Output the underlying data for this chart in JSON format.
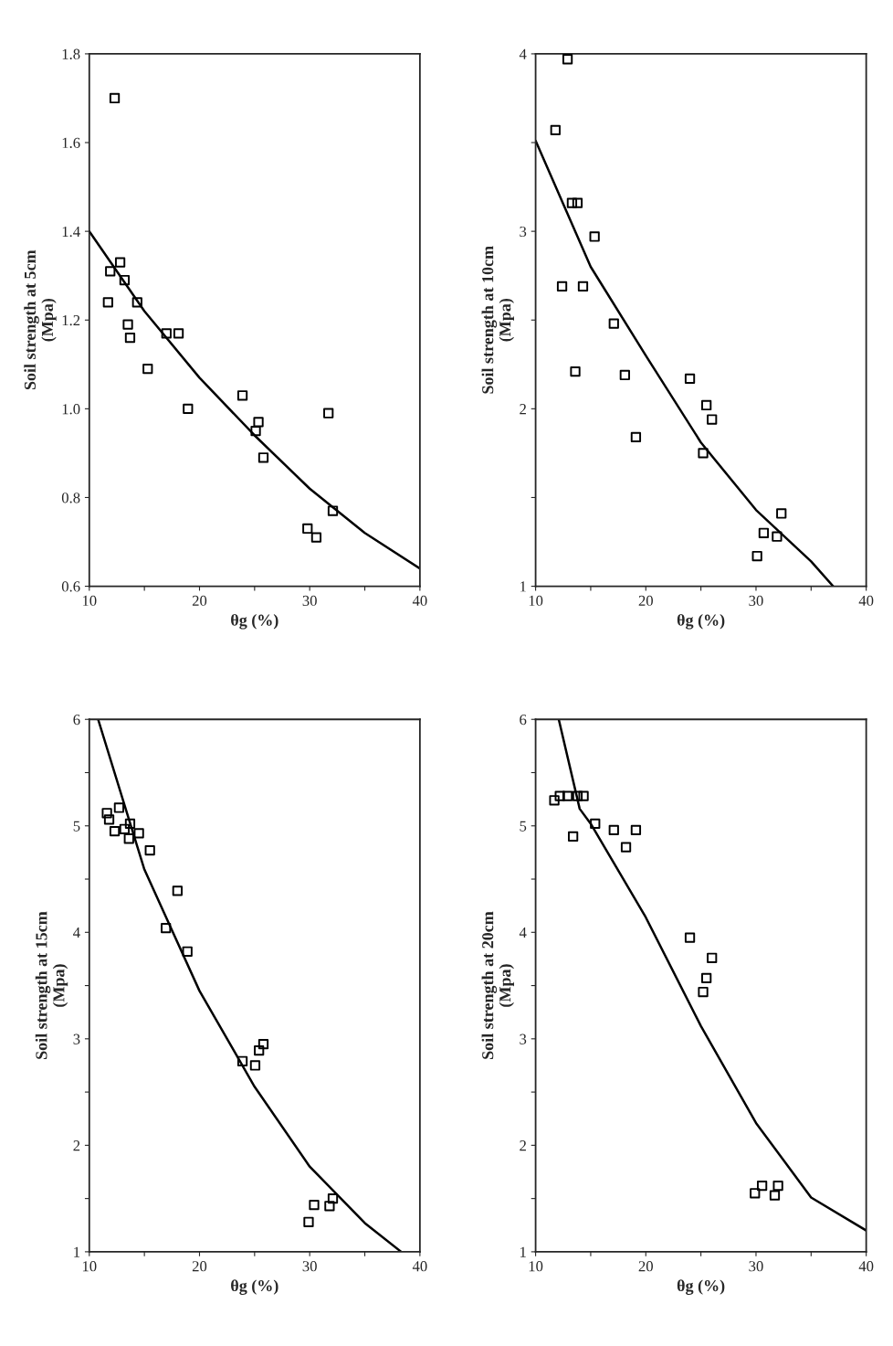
{
  "chart_data": [
    {
      "type": "scatter",
      "xlabel": "θg (%)",
      "ylabel": "Soil strength at 5cm\n(Mpa)",
      "xlim": [
        10,
        40
      ],
      "ylim": [
        0.6,
        1.8
      ],
      "xticks": [
        10,
        {
          "value": 15,
          "label": null
        },
        20,
        {
          "value": 25,
          "label": null
        },
        30,
        {
          "value": 35,
          "label": null
        },
        40
      ],
      "yticks": [
        {
          "value": 0.6,
          "label": "0.6"
        },
        {
          "value": 0.8,
          "label": "0.8"
        },
        {
          "value": 1.0,
          "label": "1.0"
        },
        {
          "value": 1.2,
          "label": "1.2"
        },
        {
          "value": 1.4,
          "label": "1.4"
        },
        {
          "value": 1.6,
          "label": "1.6"
        },
        {
          "value": 1.8,
          "label": "1.8"
        }
      ],
      "grid": false,
      "legend": false,
      "series": [
        {
          "color": "#000000",
          "marker": "square",
          "x": [
            12.3,
            11.9,
            11.7,
            12.8,
            13.2,
            13.5,
            13.7,
            14.35,
            15.3,
            17.0,
            18.1,
            18.95,
            23.9,
            25.35,
            25.1,
            25.8,
            31.7,
            32.1,
            29.8,
            30.6
          ],
          "values": [
            1.7,
            1.31,
            1.24,
            1.33,
            1.29,
            1.19,
            1.16,
            1.24,
            1.09,
            1.17,
            1.17,
            1.0,
            1.03,
            0.97,
            0.95,
            0.89,
            0.99,
            0.77,
            0.73,
            0.71
          ]
        },
        {
          "type": "line",
          "color": "#000000",
          "marker": "none",
          "line_style": "solid",
          "x": [
            10,
            15,
            20,
            25,
            30,
            35,
            40
          ],
          "values": [
            1.4,
            1.22,
            1.07,
            0.94,
            0.82,
            0.72,
            0.64
          ]
        }
      ]
    },
    {
      "type": "scatter",
      "xlabel": "θg (%)",
      "ylabel": "Soil strength at 10cm\n(Mpa)",
      "xlim": [
        10,
        40
      ],
      "ylim": [
        1,
        4
      ],
      "xticks": [
        10,
        {
          "value": 15,
          "label": null
        },
        20,
        {
          "value": 25,
          "label": null
        },
        30,
        {
          "value": 35,
          "label": null
        },
        40
      ],
      "yticks": [
        1,
        {
          "value": 1.5,
          "label": null
        },
        2,
        {
          "value": 2.5,
          "label": null
        },
        3,
        {
          "value": 3.5,
          "label": null
        },
        4
      ],
      "grid": false,
      "legend": false,
      "series": [
        {
          "color": "#000000",
          "marker": "square",
          "x": [
            12.9,
            11.8,
            13.8,
            13.3,
            15.35,
            14.3,
            12.4,
            13.6,
            17.1,
            18.1,
            19.1,
            24.0,
            25.5,
            26.0,
            25.2,
            32.3,
            31.9,
            30.7,
            30.1
          ],
          "values": [
            3.97,
            3.57,
            3.16,
            3.16,
            2.97,
            2.69,
            2.69,
            2.21,
            2.48,
            2.19,
            1.84,
            2.17,
            2.02,
            1.94,
            1.75,
            1.41,
            1.28,
            1.3,
            1.17
          ]
        },
        {
          "type": "line",
          "color": "#000000",
          "marker": "none",
          "line_style": "solid",
          "x": [
            10,
            15,
            20,
            25,
            30,
            35,
            37
          ],
          "values": [
            3.51,
            2.8,
            2.3,
            1.81,
            1.43,
            1.14,
            1.0
          ]
        }
      ]
    },
    {
      "type": "scatter",
      "xlabel": "θg (%)",
      "ylabel": "Soil strength at 15cm\n(Mpa)",
      "xlim": [
        10,
        40
      ],
      "ylim": [
        1,
        6
      ],
      "xticks": [
        10,
        {
          "value": 15,
          "label": null
        },
        20,
        {
          "value": 25,
          "label": null
        },
        30,
        {
          "value": 35,
          "label": null
        },
        40
      ],
      "yticks": [
        1,
        {
          "value": 1.5,
          "label": null
        },
        2,
        {
          "value": 2.5,
          "label": null
        },
        3,
        {
          "value": 3.5,
          "label": null
        },
        4,
        {
          "value": 4.5,
          "label": null
        },
        5,
        {
          "value": 5.5,
          "label": null
        },
        6
      ],
      "grid": false,
      "legend": false,
      "series": [
        {
          "color": "#000000",
          "marker": "square",
          "x": [
            11.6,
            11.8,
            12.7,
            12.3,
            13.7,
            13.2,
            13.6,
            14.5,
            15.5,
            18.0,
            16.95,
            18.9,
            25.8,
            25.4,
            25.05,
            23.9,
            32.1,
            31.8,
            30.4,
            29.9
          ],
          "values": [
            5.12,
            5.06,
            5.17,
            4.95,
            5.02,
            4.97,
            4.88,
            4.93,
            4.77,
            4.39,
            4.04,
            3.82,
            2.95,
            2.89,
            2.75,
            2.79,
            1.5,
            1.43,
            1.44,
            1.28
          ]
        },
        {
          "type": "line",
          "color": "#000000",
          "marker": "none",
          "line_style": "solid",
          "x": [
            10.8,
            15,
            20,
            25,
            30,
            35,
            38.3
          ],
          "values": [
            6.0,
            4.59,
            3.45,
            2.55,
            1.8,
            1.27,
            1.0
          ]
        }
      ]
    },
    {
      "type": "scatter",
      "xlabel": "θg (%)",
      "ylabel": "Soil strength at 20cm\n(Mpa)",
      "xlim": [
        10,
        40
      ],
      "ylim": [
        1,
        6
      ],
      "xticks": [
        10,
        {
          "value": 15,
          "label": null
        },
        20,
        {
          "value": 25,
          "label": null
        },
        30,
        {
          "value": 35,
          "label": null
        },
        40
      ],
      "yticks": [
        1,
        {
          "value": 1.5,
          "label": null
        },
        2,
        {
          "value": 2.5,
          "label": null
        },
        3,
        {
          "value": 3.5,
          "label": null
        },
        4,
        {
          "value": 4.5,
          "label": null
        },
        5,
        {
          "value": 5.5,
          "label": null
        },
        6
      ],
      "grid": false,
      "legend": false,
      "series": [
        {
          "color": "#000000",
          "marker": "square",
          "x": [
            11.7,
            12.2,
            12.9,
            13.8,
            14.35,
            13.4,
            15.4,
            17.1,
            18.2,
            19.1,
            24.0,
            26.0,
            25.5,
            25.2,
            32.0,
            31.7,
            30.55,
            29.9
          ],
          "values": [
            5.24,
            5.28,
            5.28,
            5.28,
            5.28,
            4.9,
            5.02,
            4.96,
            4.8,
            4.96,
            3.95,
            3.76,
            3.57,
            3.44,
            1.62,
            1.53,
            1.62,
            1.55
          ]
        },
        {
          "type": "line",
          "color": "#000000",
          "marker": "none",
          "line_style": "solid",
          "x": [
            12.1,
            14,
            15,
            20,
            25,
            30,
            35,
            40
          ],
          "values": [
            6.0,
            5.16,
            5.02,
            4.14,
            3.12,
            2.21,
            1.51,
            1.2
          ]
        }
      ]
    }
  ]
}
